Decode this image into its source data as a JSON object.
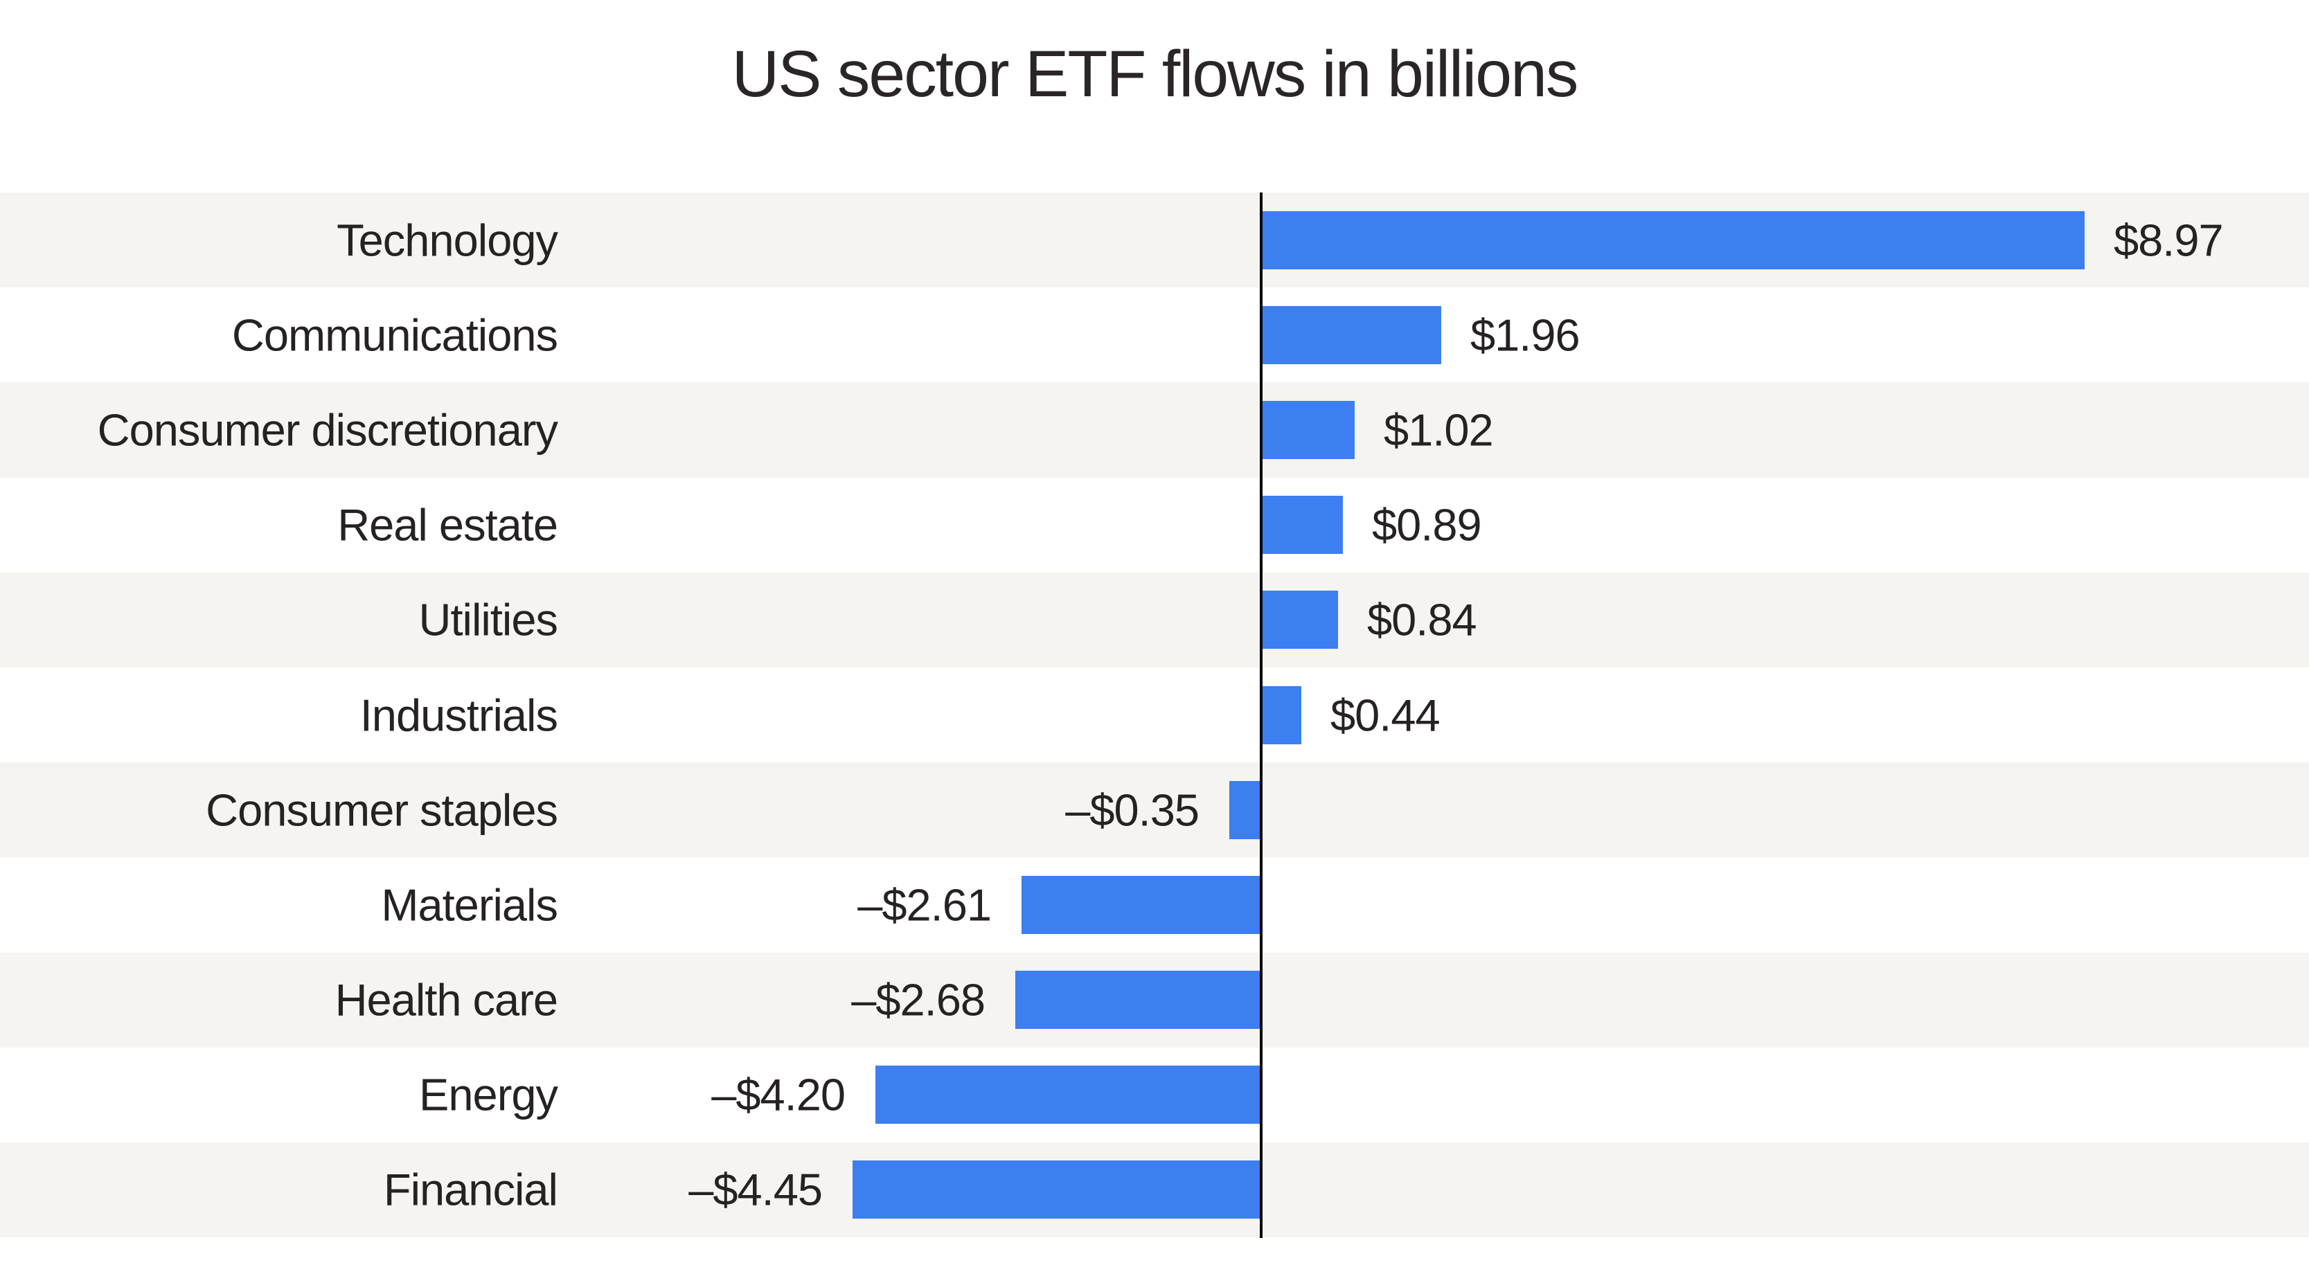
{
  "chart_data": {
    "type": "bar",
    "orientation": "horizontal",
    "title": "US sector ETF flows in billions",
    "categories": [
      "Technology",
      "Communications",
      "Consumer discretionary",
      "Real estate",
      "Utilities",
      "Industrials",
      "Consumer staples",
      "Materials",
      "Health care",
      "Energy",
      "Financial"
    ],
    "values": [
      8.97,
      1.96,
      1.02,
      0.89,
      0.84,
      0.44,
      -0.35,
      -2.61,
      -2.68,
      -4.2,
      -4.45
    ],
    "value_labels": [
      "$8.97",
      "$1.96",
      "$1.02",
      "$0.89",
      "$0.84",
      "$0.44",
      "–$0.35",
      "–$2.61",
      "–$2.68",
      "–$4.20",
      "–$4.45"
    ],
    "xlim": [
      -4.45,
      8.97
    ],
    "grid": false,
    "legend": false,
    "row_striping": "alternating, first row shaded",
    "colors": {
      "bar": "#3d7ef0",
      "row_stripe": "#f5f4f1",
      "row_alt": "#ffffff",
      "axis": "#000000",
      "title_text": "#2a2627",
      "label_text": "#262223",
      "background": "#ffffff"
    }
  }
}
